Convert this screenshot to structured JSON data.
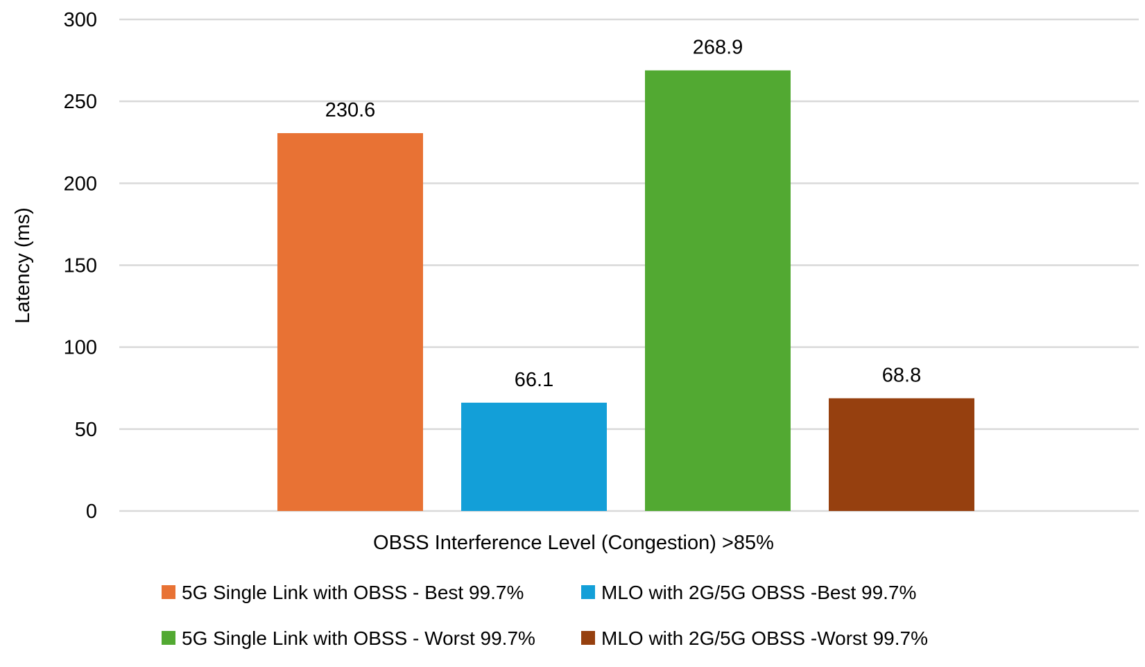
{
  "chart_data": {
    "type": "bar",
    "categories": [
      "OBSS Interference Level (Congestion) >85%"
    ],
    "series": [
      {
        "name": "5G Single Link with OBSS - Best 99.7%",
        "values": [
          230.6
        ],
        "color": "#E87234"
      },
      {
        "name": "MLO with 2G/5G OBSS -Best 99.7%",
        "values": [
          66.1
        ],
        "color": "#139FD8"
      },
      {
        "name": "5G Single Link with OBSS - Worst 99.7%",
        "values": [
          268.9
        ],
        "color": "#52A932"
      },
      {
        "name": "MLO with 2G/5G OBSS -Worst 99.7%",
        "values": [
          68.8
        ],
        "color": "#96400F"
      }
    ],
    "data_labels": [
      "230.6",
      "66.1",
      "268.9",
      "68.8"
    ],
    "xlabel": "OBSS Interference Level (Congestion) >85%",
    "ylabel": "Latency (ms)",
    "ylim": [
      0,
      300
    ],
    "yticks": [
      0,
      50,
      100,
      150,
      200,
      250,
      300
    ],
    "ytick_labels": [
      "0",
      "50",
      "100",
      "150",
      "200",
      "250",
      "300"
    ],
    "grid": true,
    "gridline_color": "#d9d9d9",
    "legend_position": "bottom"
  }
}
